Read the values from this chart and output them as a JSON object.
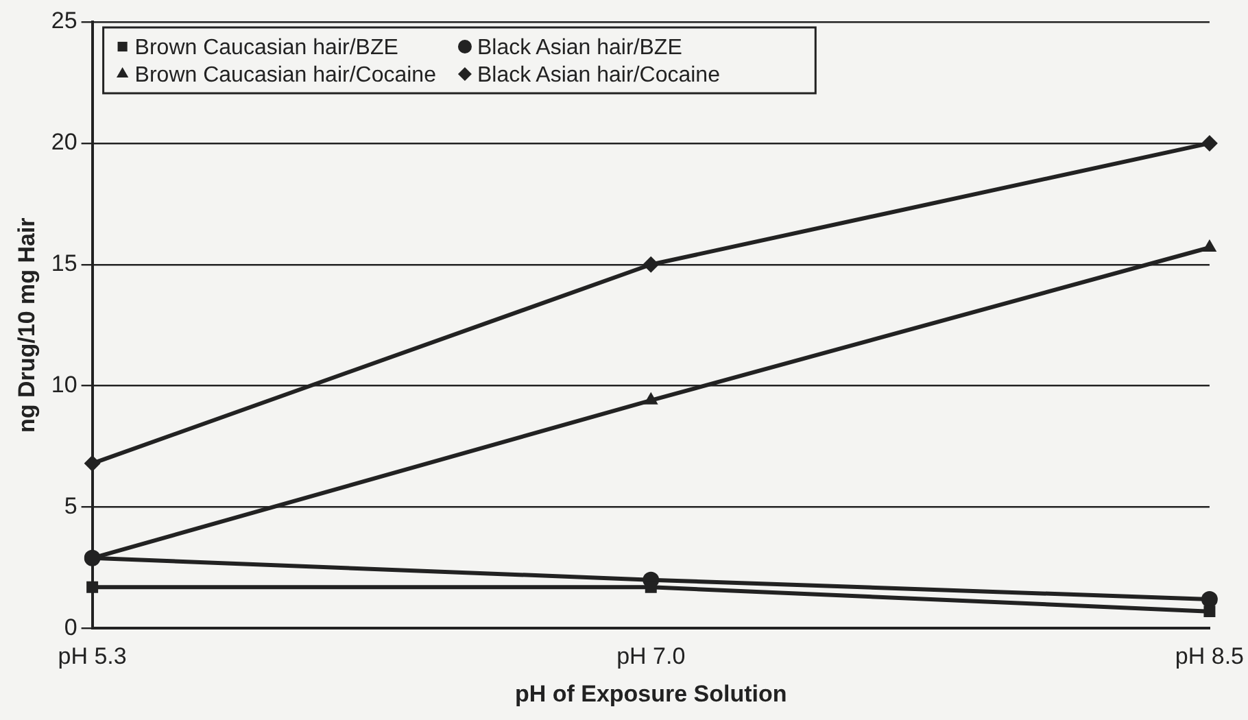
{
  "chart_data": {
    "type": "line",
    "xlabel": "pH of Exposure Solution",
    "ylabel": "ng Drug/10 mg Hair",
    "categories": [
      "pH 5.3",
      "pH 7.0",
      "pH 8.5"
    ],
    "series": [
      {
        "name": "Brown Caucasian hair/BZE",
        "color": "#222222",
        "marker": "square",
        "values": [
          1.7,
          1.7,
          0.7
        ]
      },
      {
        "name": "Black Asian hair/BZE",
        "color": "#222222",
        "marker": "circle",
        "values": [
          2.9,
          2.0,
          1.2
        ]
      },
      {
        "name": "Brown Caucasian hair/Cocaine",
        "color": "#222222",
        "marker": "triangle",
        "values": [
          2.9,
          9.4,
          15.7
        ]
      },
      {
        "name": "Black Asian hair/Cocaine",
        "color": "#222222",
        "marker": "diamond",
        "values": [
          6.8,
          15.0,
          20.0
        ]
      }
    ],
    "ylim": [
      0,
      25
    ],
    "yticks": [
      0,
      5,
      10,
      15,
      20,
      25
    ],
    "grid": "y",
    "legend": "top left",
    "line_style": "solid"
  }
}
